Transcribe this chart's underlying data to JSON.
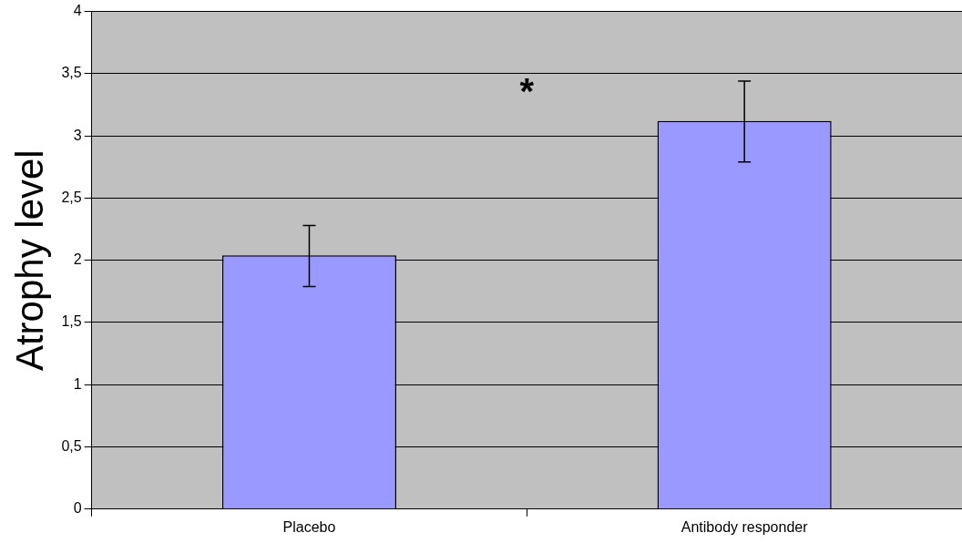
{
  "chart_data": {
    "type": "bar",
    "ylabel": "Atrophy level",
    "categories": [
      "Placebo",
      "Antibody responder"
    ],
    "values": [
      2.04,
      3.12
    ],
    "errors": [
      [
        1.79,
        2.28
      ],
      [
        2.79,
        3.44
      ]
    ],
    "color": "#9999ff",
    "ylim": [
      0,
      4
    ],
    "yticks": [
      0,
      {
        "value": 0.5,
        "label": "0,5"
      },
      1,
      {
        "value": 1.5,
        "label": "1,5"
      },
      2,
      {
        "value": 2.5,
        "label": "2,5"
      },
      3,
      {
        "value": 3.5,
        "label": "3,5"
      },
      4
    ],
    "grid": "y",
    "annotations": [
      "*"
    ]
  }
}
